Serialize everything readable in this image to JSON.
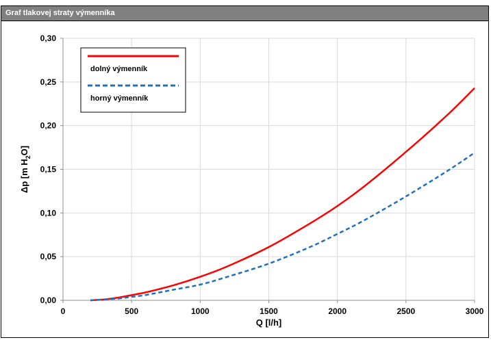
{
  "window": {
    "title": "Graf tlakovej straty výmenníka"
  },
  "chart_data": {
    "type": "line",
    "xlabel": "Q [l/h]",
    "ylabel": {
      "main": "Δp [m H",
      "sub": "2",
      "end": "O]"
    },
    "xlim": [
      0,
      3000
    ],
    "ylim": [
      0,
      0.3
    ],
    "xticks": [
      0,
      500,
      1000,
      1500,
      2000,
      2500,
      3000
    ],
    "xtick_labels": [
      "0",
      "500",
      "1000",
      "1500",
      "2000",
      "2500",
      "3000"
    ],
    "yticks": [
      0,
      0.05,
      0.1,
      0.15,
      0.2,
      0.25,
      0.3
    ],
    "ytick_labels": [
      "0,00",
      "0,05",
      "0,10",
      "0,15",
      "0,20",
      "0,25",
      "0,30"
    ],
    "grid": true,
    "legend": "top-left",
    "series": [
      {
        "name": "dolný výmenník",
        "color": "#ff0000",
        "style": "solid",
        "x": [
          200,
          300,
          400,
          500,
          600,
          800,
          1000,
          1200,
          1500,
          1800,
          2000,
          2200,
          2500,
          2800,
          3000
        ],
        "y": [
          0.0,
          0.001,
          0.003,
          0.006,
          0.009,
          0.017,
          0.027,
          0.039,
          0.061,
          0.088,
          0.108,
          0.131,
          0.17,
          0.212,
          0.243
        ]
      },
      {
        "name": "horný výmenník",
        "color": "#1f6fbf",
        "style": "dashed",
        "x": [
          200,
          300,
          400,
          500,
          600,
          800,
          1000,
          1200,
          1500,
          1800,
          2000,
          2200,
          2500,
          2800,
          3000
        ],
        "y": [
          0.0,
          0.001,
          0.002,
          0.004,
          0.006,
          0.012,
          0.018,
          0.027,
          0.042,
          0.061,
          0.076,
          0.092,
          0.119,
          0.148,
          0.169
        ]
      }
    ]
  }
}
